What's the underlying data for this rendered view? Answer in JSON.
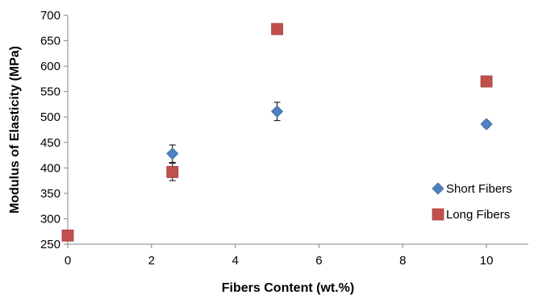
{
  "chart_data": {
    "type": "scatter",
    "xlabel": "Fibers Content (wt.%)",
    "ylabel": "Modulus of Elasticity (MPa)",
    "xlim": [
      0,
      11
    ],
    "ylim": [
      250,
      700
    ],
    "x_ticks": [
      0,
      2,
      4,
      6,
      8,
      10
    ],
    "y_ticks": [
      250,
      300,
      350,
      400,
      450,
      500,
      550,
      600,
      650,
      700
    ],
    "grid": false,
    "legend_position": "right",
    "series": [
      {
        "name": "Short Fibers",
        "marker": "diamond",
        "color": "#4F81BD",
        "points": [
          {
            "x": 2.5,
            "y": 428,
            "err": 17
          },
          {
            "x": 5,
            "y": 511,
            "err": 18
          },
          {
            "x": 10,
            "y": 486,
            "err": 6
          }
        ]
      },
      {
        "name": "Long Fibers",
        "marker": "square",
        "color": "#C0504D",
        "points": [
          {
            "x": 0,
            "y": 267,
            "err": 0
          },
          {
            "x": 2.5,
            "y": 392,
            "err": 17
          },
          {
            "x": 5,
            "y": 673,
            "err": 10
          },
          {
            "x": 10,
            "y": 570,
            "err": 6
          }
        ]
      }
    ]
  }
}
